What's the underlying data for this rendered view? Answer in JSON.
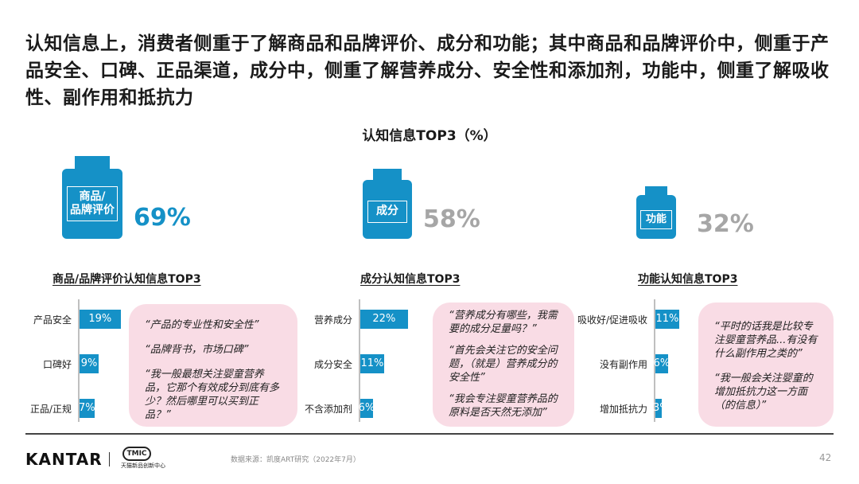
{
  "headline": "认知信息上，消费者侧重于了解商品和品牌评价、成分和功能；其中商品和品牌评价中，侧重于产品安全、口碑、正品渠道，成分中，侧重了解营养成分、安全性和添加剂，功能中，侧重了解吸收性、副作用和抵抗力",
  "chart_title": "认知信息TOP3（%）",
  "chart_data": [
    {
      "type": "bar",
      "title": "认知信息TOP3（%）",
      "categories": [
        "商品/品牌评价",
        "成分",
        "功能"
      ],
      "values": [
        69,
        58,
        32
      ],
      "value_labels": [
        "69%",
        "58%",
        "32%"
      ]
    },
    {
      "type": "bar",
      "orientation": "horizontal",
      "title": "商品/品牌评价认知信息TOP3",
      "categories": [
        "产品安全",
        "口碑好",
        "正品/正规"
      ],
      "values": [
        19,
        9,
        7
      ],
      "value_labels": [
        "19%",
        "9%",
        "7%"
      ]
    },
    {
      "type": "bar",
      "orientation": "horizontal",
      "title": "成分认知信息TOP3",
      "categories": [
        "营养成分",
        "成分安全",
        "不含添加剂"
      ],
      "values": [
        22,
        11,
        6
      ],
      "value_labels": [
        "22%",
        "11%",
        "6%"
      ]
    },
    {
      "type": "bar",
      "orientation": "horizontal",
      "title": "功能认知信息TOP3",
      "categories": [
        "吸收好/促进吸收",
        "没有副作用",
        "增加抵抗力"
      ],
      "values": [
        11,
        6,
        3
      ],
      "value_labels": [
        "11%",
        "6%",
        "3%"
      ]
    }
  ],
  "bottles": [
    {
      "label_line1": "商品/",
      "label_line2": "品牌评价",
      "pct": "69%",
      "pct_color": "#1591c7"
    },
    {
      "label_line1": "成分",
      "label_line2": "",
      "pct": "58%",
      "pct_color": "#a6a6a6"
    },
    {
      "label_line1": "功能",
      "label_line2": "",
      "pct": "32%",
      "pct_color": "#a6a6a6"
    }
  ],
  "quotes": [
    [
      "“产品的专业性和安全性”",
      "“品牌背书，市场口碑”",
      "“我一般最想关注婴童营养品，它那个有效成分到底有多少？然后哪里可以买到正品？”"
    ],
    [
      "“营养成分有哪些，我需要的成分足量吗？”",
      "“首先会关注它的安全问题，（就是）营养成分的安全性”",
      "“我会专注婴童营养品的原料是否天然无添加”"
    ],
    [
      "“平时的话我是比较专注婴童营养品...有没有什么副作用之类的”",
      "“我一般会关注婴童的增加抵抗力这一方面（的信息）”"
    ]
  ],
  "colors": {
    "accent": "#1591c7",
    "muted": "#a6a6a6",
    "quote_bg": "#f9dce5"
  },
  "footer": {
    "brand": "KANTAR",
    "partner_mark": "TMIC",
    "partner_name": "天猫新品创新中心",
    "source": "数据来源：凯度ART研究（2022年7月）",
    "page": "42"
  }
}
